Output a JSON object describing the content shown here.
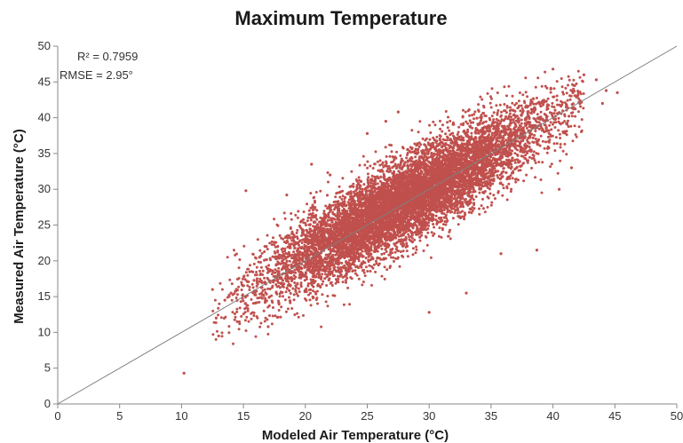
{
  "chart_data": {
    "type": "scatter",
    "title": "Maximum Temperature",
    "xlabel": "Modeled Air Temperature (°C)",
    "ylabel": "Measured Air Temperature (°C)",
    "xlim": [
      0,
      50
    ],
    "ylim": [
      0,
      50
    ],
    "xticks": [
      "0",
      "5",
      "10",
      "15",
      "20",
      "25",
      "30",
      "35",
      "40",
      "45",
      "50"
    ],
    "yticks": [
      "0",
      "5",
      "10",
      "15",
      "20",
      "25",
      "30",
      "35",
      "40",
      "45",
      "50"
    ],
    "grid": false,
    "annotations": [
      "R² = 0.7959",
      "RMSE = 2.95°"
    ],
    "reference_line": {
      "x": [
        0,
        50
      ],
      "y": [
        0,
        50
      ]
    },
    "marker_color": "#c0504d",
    "line_color": "#7f7f7f",
    "series": [
      {
        "points": [
          [
            10.2,
            4.3
          ],
          [
            15.2,
            29.8
          ],
          [
            16.3,
            20.5
          ],
          [
            14.0,
            15.5
          ],
          [
            13.5,
            14.5
          ],
          [
            13.0,
            9.5
          ],
          [
            12.5,
            16.0
          ],
          [
            38.7,
            21.5
          ],
          [
            30.0,
            12.8
          ],
          [
            43.5,
            45.3
          ],
          [
            45.2,
            43.5
          ],
          [
            44.3,
            43.8
          ],
          [
            40.0,
            46.8
          ],
          [
            27.5,
            40.8
          ],
          [
            25.0,
            37.8
          ],
          [
            22.0,
            32.0
          ],
          [
            20.5,
            33.5
          ],
          [
            17.0,
            10.8
          ],
          [
            33.0,
            15.5
          ],
          [
            35.8,
            21.0
          ],
          [
            41.5,
            33.0
          ],
          [
            40.5,
            30.0
          ],
          [
            26.5,
            39.5
          ],
          [
            18.5,
            29.2
          ],
          [
            14.5,
            11.5
          ],
          [
            12.8,
            12.0
          ],
          [
            44.0,
            42.0
          ],
          [
            42.5,
            46.0
          ]
        ],
        "cloud": {
          "count": 9000,
          "x_range": [
            12.5,
            42.5
          ],
          "center": 28,
          "spread": 5.6,
          "residual_sd": 2.95,
          "slope": 0.97,
          "intercept": 1.2
        }
      }
    ]
  }
}
